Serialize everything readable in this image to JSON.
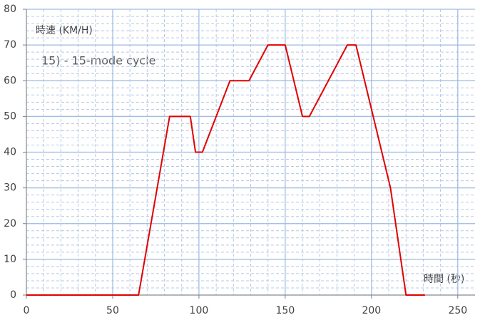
{
  "chart_data": {
    "type": "line",
    "title": "15) - 15-mode cycle",
    "y_label": "時速 (KM/H)",
    "x_label": "時間 (秒)",
    "x": [
      0,
      65,
      83,
      95,
      98,
      102,
      118,
      129,
      140,
      150,
      160,
      164,
      186,
      191,
      211,
      220,
      231
    ],
    "series": [
      {
        "color": "#e00000",
        "values": [
          0,
          0,
          50,
          50,
          40,
          40,
          60,
          60,
          70,
          70,
          50,
          50,
          70,
          70,
          30,
          0,
          0
        ]
      }
    ],
    "xlim": [
      0,
      260
    ],
    "ylim": [
      0,
      80
    ],
    "xticks": [
      0,
      50,
      100,
      150,
      200,
      250
    ],
    "yticks": [
      0,
      10,
      20,
      30,
      40,
      50,
      60,
      70,
      80
    ],
    "grid": true,
    "minor_grid_step": [
      10,
      2
    ]
  }
}
